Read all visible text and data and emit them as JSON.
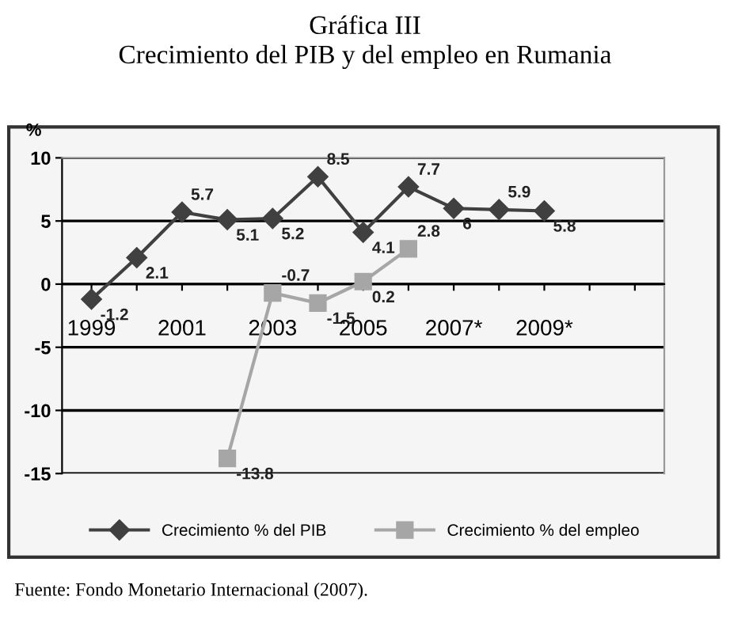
{
  "chart_data": {
    "type": "line",
    "title": "Gráfica III\nCrecimiento del PIB y del empleo en Rumania",
    "ylabel": "%",
    "categories": [
      "1999",
      null,
      "2001",
      null,
      "2003",
      null,
      "2005",
      null,
      "2007*",
      null,
      "2009*",
      null,
      null
    ],
    "series": [
      {
        "name": "Crecimiento % del PIB",
        "color": "#404040",
        "marker": "diamond",
        "values": [
          -1.2,
          2.1,
          5.7,
          5.1,
          5.2,
          8.5,
          4.1,
          7.7,
          6,
          5.9,
          5.8,
          null,
          null
        ]
      },
      {
        "name": "Crecimiento % del empleo",
        "color": "#a6a6a6",
        "marker": "square",
        "values": [
          null,
          null,
          null,
          -13.8,
          -0.7,
          -1.5,
          0.2,
          2.8,
          null,
          null,
          null,
          null,
          null
        ]
      }
    ],
    "ylim": [
      -15,
      10
    ],
    "yticks": [
      -15,
      -10,
      -5,
      0,
      5,
      10
    ],
    "grid": "y",
    "legend": "bottom",
    "data_labels": true,
    "line_style": "solid",
    "annotations": [
      "Fuente: Fondo Monetario Internacional (2007)."
    ]
  }
}
